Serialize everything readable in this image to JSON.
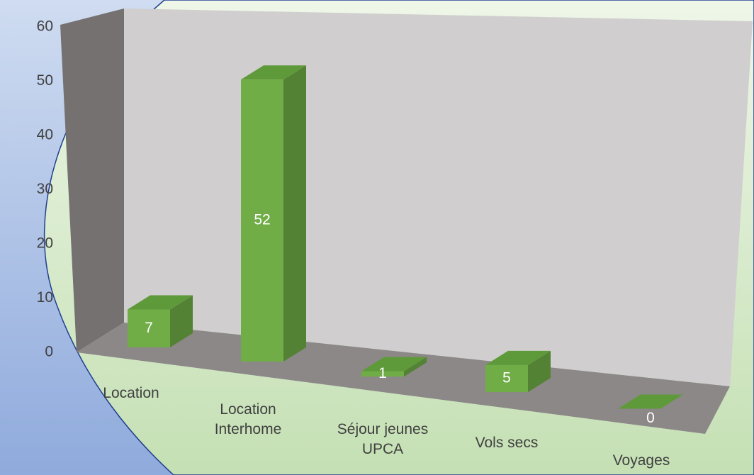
{
  "chart_data": {
    "type": "bar3d",
    "categories": [
      "Location",
      "Location Interhome",
      "Séjour jeunes UPCA",
      "Vols secs",
      "Voyages"
    ],
    "values": [
      7,
      52,
      1,
      5,
      0
    ],
    "color": "#70ad47",
    "ylim": [
      0,
      60
    ],
    "yticks": [
      0,
      10,
      20,
      30,
      40,
      50,
      60
    ]
  }
}
